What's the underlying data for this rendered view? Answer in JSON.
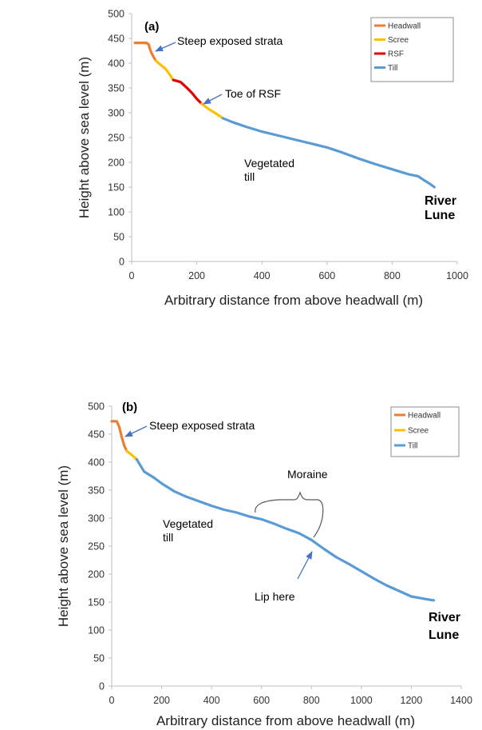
{
  "colors": {
    "headwall": "#ED7D31",
    "scree": "#FFC000",
    "rsf": "#E00000",
    "till": "#5B9BD5",
    "axis": "#BFBFBF",
    "arrow": "#4472C4"
  },
  "chart_data": [
    {
      "type": "line",
      "panel_label": "(a)",
      "xlabel": "Arbitrary distance from above headwall (m)",
      "ylabel": "Height above sea level (m)",
      "xlim": [
        0,
        1000
      ],
      "ylim": [
        0,
        500
      ],
      "xticks": [
        0,
        200,
        400,
        600,
        800,
        1000
      ],
      "yticks": [
        0,
        50,
        100,
        150,
        200,
        250,
        300,
        350,
        400,
        450,
        500
      ],
      "grid": false,
      "legend_position": "top-right",
      "series": [
        {
          "name": "Headwall",
          "color": "#ED7D31",
          "x": [
            10,
            45,
            52,
            58,
            66,
            74
          ],
          "y": [
            441,
            441,
            438,
            425,
            414,
            405
          ]
        },
        {
          "name": "Scree",
          "color": "#FFC000",
          "x": [
            74,
            90,
            105,
            118,
            128
          ],
          "y": [
            405,
            396,
            388,
            376,
            366
          ]
        },
        {
          "name": "RSF",
          "color": "#E00000",
          "x": [
            128,
            150,
            170,
            185,
            200,
            215
          ],
          "y": [
            366,
            362,
            350,
            340,
            328,
            318
          ]
        },
        {
          "name": "Scree",
          "color": "#FFC000",
          "x": [
            215,
            235,
            255,
            280
          ],
          "y": [
            318,
            308,
            300,
            289
          ]
        },
        {
          "name": "Till",
          "color": "#5B9BD5",
          "x": [
            280,
            310,
            350,
            400,
            450,
            500,
            550,
            600,
            650,
            700,
            750,
            800,
            850,
            880,
            900,
            915,
            930
          ],
          "y": [
            289,
            281,
            272,
            262,
            254,
            246,
            238,
            230,
            219,
            207,
            196,
            186,
            176,
            172,
            163,
            157,
            150
          ]
        }
      ],
      "legend": [
        "Headwall",
        "Scree",
        "RSF",
        "Till"
      ],
      "annotations": [
        {
          "text": "Steep exposed strata",
          "x": 150,
          "y": 443
        },
        {
          "text": "Toe of RSF",
          "x": 280,
          "y": 335
        },
        {
          "text": "Vegetated",
          "x": 345,
          "y": 197
        },
        {
          "text": "till",
          "x": 383,
          "y": 177
        },
        {
          "text": "River",
          "x": 900,
          "y": 118
        },
        {
          "text": "Lune",
          "x": 895,
          "y": 93
        }
      ]
    },
    {
      "type": "line",
      "panel_label": "(b)",
      "xlabel": "Arbitrary distance from above headwall (m)",
      "ylabel": "Height above sea level (m)",
      "xlim": [
        0,
        1400
      ],
      "ylim": [
        0,
        500
      ],
      "xticks": [
        0,
        200,
        400,
        600,
        800,
        1000,
        1200,
        1400
      ],
      "yticks": [
        0,
        50,
        100,
        150,
        200,
        250,
        300,
        350,
        400,
        450,
        500
      ],
      "grid": false,
      "legend_position": "top-right",
      "series": [
        {
          "name": "Headwall",
          "color": "#ED7D31",
          "x": [
            0,
            20,
            30,
            40,
            50,
            60
          ],
          "y": [
            473,
            473,
            463,
            445,
            430,
            420
          ]
        },
        {
          "name": "Scree",
          "color": "#FFC000",
          "x": [
            60,
            80,
            100
          ],
          "y": [
            420,
            413,
            405
          ]
        },
        {
          "name": "Till",
          "color": "#5B9BD5",
          "x": [
            100,
            130,
            170,
            200,
            250,
            300,
            350,
            400,
            450,
            500,
            550,
            600,
            650,
            700,
            750,
            800,
            850,
            900,
            950,
            1000,
            1050,
            1100,
            1150,
            1200,
            1250,
            1290
          ],
          "y": [
            405,
            383,
            372,
            362,
            348,
            338,
            330,
            322,
            315,
            310,
            303,
            298,
            290,
            281,
            273,
            261,
            245,
            230,
            218,
            205,
            192,
            180,
            170,
            160,
            156,
            153
          ]
        }
      ],
      "legend": [
        "Headwall",
        "Scree",
        "Till"
      ],
      "annotations": [
        {
          "text": "Steep exposed strata",
          "x": 155,
          "y": 465
        },
        {
          "text": "Moraine",
          "x": 690,
          "y": 370
        },
        {
          "text": "Vegetated",
          "x": 205,
          "y": 280
        },
        {
          "text": "till",
          "x": 205,
          "y": 260
        },
        {
          "text": "Lip here",
          "x": 560,
          "y": 160
        },
        {
          "text": "River",
          "x": 1235,
          "y": 115
        },
        {
          "text": "Lune",
          "x": 1245,
          "y": 89
        }
      ]
    }
  ]
}
